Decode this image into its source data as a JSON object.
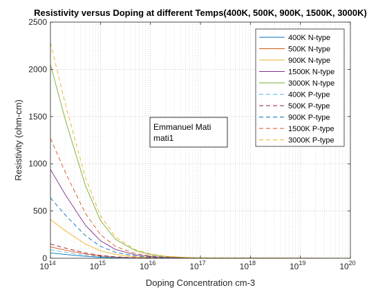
{
  "chart_data": {
    "type": "line",
    "title": "Resistivity versus Doping at different Temps(400K, 500K, 900K, 1500K, 3000K)",
    "xlabel": "Doping Concentration cm-3",
    "ylabel": "Resistivity (ohm-cm)",
    "x_scale": "log",
    "xlim": [
      100000000000000.0,
      1e+20
    ],
    "ylim": [
      0,
      2500
    ],
    "x_ticks": [
      {
        "value": 100000000000000.0,
        "base": "10",
        "exp": "14"
      },
      {
        "value": 1000000000000000.0,
        "base": "10",
        "exp": "15"
      },
      {
        "value": 1e+16,
        "base": "10",
        "exp": "16"
      },
      {
        "value": 1e+17,
        "base": "10",
        "exp": "17"
      },
      {
        "value": 1e+18,
        "base": "10",
        "exp": "18"
      },
      {
        "value": 1e+19,
        "base": "10",
        "exp": "19"
      },
      {
        "value": 1e+20,
        "base": "10",
        "exp": "20"
      }
    ],
    "y_ticks": [
      0,
      500,
      1000,
      1500,
      2000,
      2500
    ],
    "grid": "dotted major and minor",
    "legend_position": "top-right",
    "x": [
      100000000000000.0,
      200000000000000.0,
      500000000000000.0,
      1000000000000000.0,
      2000000000000000.0,
      5000000000000000.0,
      1e+16,
      2e+16,
      5e+16,
      1e+17,
      1e+20
    ],
    "series": [
      {
        "name": "400K N-type",
        "color": "#0072BD",
        "dash": "solid",
        "values": [
          56,
          40,
          21,
          11,
          5.6,
          2.2,
          1.1,
          0.6,
          0.2,
          0.1,
          0
        ]
      },
      {
        "name": "500K N-type",
        "color": "#D95319",
        "dash": "solid",
        "values": [
          120,
          85,
          45,
          24,
          12,
          4.8,
          2.4,
          1.2,
          0.5,
          0.2,
          0
        ]
      },
      {
        "name": "900K N-type",
        "color": "#EDB120",
        "dash": "solid",
        "values": [
          410,
          290,
          150,
          80,
          40,
          16,
          8,
          4,
          1.6,
          0.8,
          0
        ]
      },
      {
        "name": "1500K N-type",
        "color": "#7E2F8E",
        "dash": "solid",
        "values": [
          940,
          670,
          350,
          185,
          93,
          37,
          18,
          9,
          3.7,
          1.8,
          0
        ]
      },
      {
        "name": "3000K N-type",
        "color": "#77AC30",
        "dash": "solid",
        "values": [
          2050,
          1460,
          770,
          400,
          200,
          80,
          40,
          20,
          8,
          4,
          0
        ]
      },
      {
        "name": "400K P-type",
        "color": "#4DBEEE",
        "dash": "dashed",
        "values": [
          90,
          64,
          34,
          18,
          9,
          3.6,
          1.8,
          0.9,
          0.4,
          0.2,
          0
        ]
      },
      {
        "name": "500K P-type",
        "color": "#A2142F",
        "dash": "dashed",
        "values": [
          150,
          107,
          56,
          30,
          15,
          6,
          3,
          1.5,
          0.6,
          0.3,
          0
        ]
      },
      {
        "name": "900K P-type",
        "color": "#0072BD",
        "dash": "dashed",
        "values": [
          640,
          455,
          240,
          126,
          63,
          25,
          12.6,
          6.3,
          2.5,
          1.3,
          0
        ]
      },
      {
        "name": "1500K P-type",
        "color": "#D95319",
        "dash": "dashed",
        "values": [
          1270,
          905,
          475,
          250,
          125,
          50,
          25,
          12.5,
          5,
          2.5,
          0
        ]
      },
      {
        "name": "3000K P-type",
        "color": "#EDB120",
        "dash": "dashed",
        "values": [
          2280,
          1625,
          855,
          450,
          225,
          90,
          45,
          22,
          9,
          4.5,
          0
        ]
      }
    ],
    "annotation": {
      "line1": "Emmanuel Mati",
      "line2": "mati1"
    }
  }
}
